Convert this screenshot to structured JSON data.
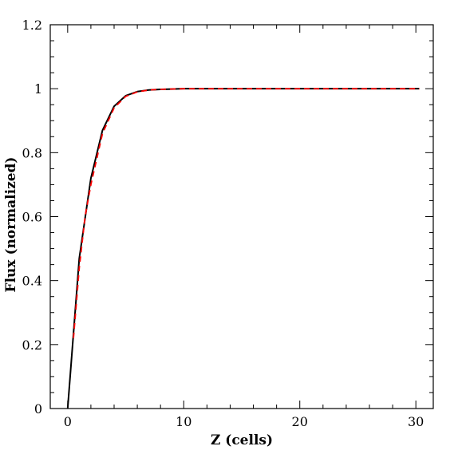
{
  "chart_data": {
    "type": "line",
    "xlabel": "Z (cells)",
    "ylabel": "Flux (normalized)",
    "xlim": [
      -1.5,
      31.5
    ],
    "ylim": [
      0,
      1.2
    ],
    "x_ticks": [
      0,
      10,
      20,
      30
    ],
    "x_tick_labels": [
      "0",
      "10",
      "20",
      "30"
    ],
    "y_ticks": [
      0,
      0.2,
      0.4,
      0.6,
      0.8,
      1.0,
      1.2
    ],
    "y_tick_labels": [
      "0",
      "0.2",
      "0.4",
      "0.6",
      "0.8",
      "1",
      "1.2"
    ],
    "x_minor_step": 2,
    "y_minor_step": 0.05,
    "grid": false,
    "legend": "none",
    "series": [
      {
        "color": "#000000",
        "style": "solid",
        "x": [
          0,
          1,
          2,
          3,
          4,
          5,
          6,
          7,
          8,
          9,
          10,
          12,
          15,
          20,
          25,
          30.3
        ],
        "y": [
          0,
          0.47,
          0.72,
          0.87,
          0.945,
          0.978,
          0.991,
          0.996,
          0.998,
          0.999,
          1.0,
          1.0,
          1.0,
          1.0,
          1.0,
          1.0
        ]
      },
      {
        "color": "#ff0000",
        "style": "dashed",
        "x": [
          0.5,
          1,
          1.5,
          2,
          3,
          4,
          5,
          6,
          7,
          8,
          10,
          12,
          15,
          20,
          25,
          30.3
        ],
        "y": [
          0.22,
          0.44,
          0.6,
          0.7,
          0.86,
          0.94,
          0.976,
          0.99,
          0.996,
          0.998,
          1.0,
          1.0,
          1.0,
          1.0,
          1.0,
          1.0
        ]
      }
    ]
  }
}
